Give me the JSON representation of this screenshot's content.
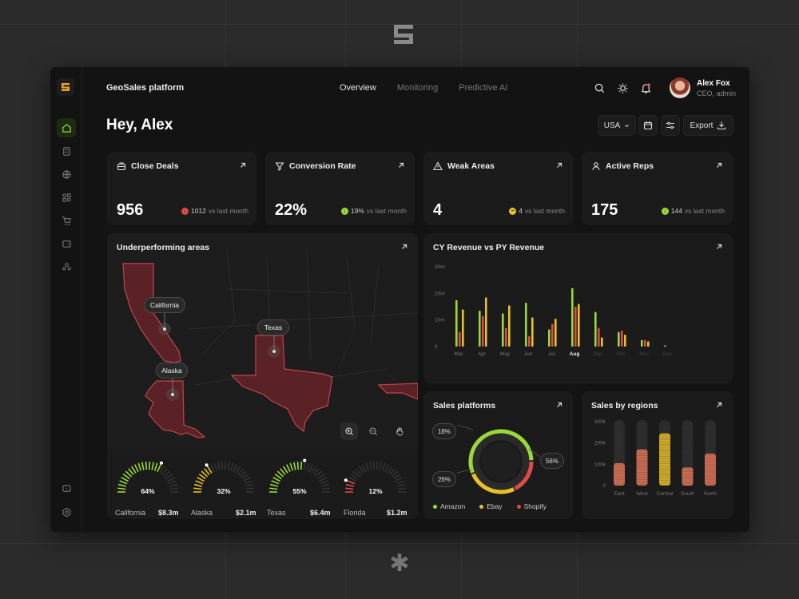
{
  "app": {
    "title": "GeoSales platform"
  },
  "nav": {
    "tabs": [
      {
        "label": "Overview",
        "active": true
      },
      {
        "label": "Monitoring",
        "active": false
      },
      {
        "label": "Predictive AI",
        "active": false
      }
    ]
  },
  "user": {
    "name": "Alex Fox",
    "role": "CEO, admin"
  },
  "greeting": "Hey, Alex",
  "controls": {
    "country": "USA",
    "export_label": "Export"
  },
  "kpis": [
    {
      "title": "Close Deals",
      "icon": "briefcase-icon",
      "value": "956",
      "delta": "1012",
      "delta_suffix": "vs last month",
      "trend": "down",
      "color": "#e04a4a"
    },
    {
      "title": "Conversion Rate",
      "icon": "filter-icon",
      "value": "22%",
      "delta": "19%",
      "delta_suffix": "vs last month",
      "trend": "up",
      "color": "#9ad83a"
    },
    {
      "title": "Weak Areas",
      "icon": "warning-icon",
      "value": "4",
      "delta": "4",
      "delta_suffix": "vs last month",
      "trend": "flat",
      "color": "#e8c12a"
    },
    {
      "title": "Active Reps",
      "icon": "user-icon",
      "value": "175",
      "delta": "144",
      "delta_suffix": "vs last month",
      "trend": "up",
      "color": "#9ad83a"
    }
  ],
  "map": {
    "title": "Underperforming areas",
    "pins": [
      "California",
      "Texas",
      "Alaska"
    ],
    "tools": [
      "zoom-in-icon",
      "zoom-out-icon",
      "hand-icon"
    ]
  },
  "gauges": [
    {
      "state": "California",
      "pct": "64%",
      "value": "$8.3m",
      "fraction": 0.64,
      "color": "#9ad83a"
    },
    {
      "state": "Alaska",
      "pct": "32%",
      "value": "$2.1m",
      "fraction": 0.32,
      "color": "#e8c12a"
    },
    {
      "state": "Texas",
      "pct": "55%",
      "value": "$6.4m",
      "fraction": 0.55,
      "color": "#9ad83a"
    },
    {
      "state": "Florida",
      "pct": "12%",
      "value": "$1.2m",
      "fraction": 0.12,
      "color": "#e04a4a"
    }
  ],
  "revenue": {
    "title": "CY Revenue vs PY Revenue",
    "colors": {
      "cy": "#e8c12a",
      "py": "#e04a4a",
      "base": "#9ad83a"
    }
  },
  "platforms": {
    "title": "Sales platforms",
    "labels": [
      "18%",
      "26%",
      "56%"
    ],
    "legend": [
      {
        "name": "Amazon",
        "color": "#9ad83a"
      },
      {
        "name": "Ebay",
        "color": "#e8c12a"
      },
      {
        "name": "Shopify",
        "color": "#e04a4a"
      }
    ]
  },
  "regions": {
    "title": "Sales by regions"
  },
  "chart_data": [
    {
      "type": "bar",
      "title": "CY Revenue vs PY Revenue",
      "categories": [
        "Mar",
        "Apr",
        "May",
        "Jun",
        "Jul",
        "Aug",
        "Sep",
        "Oct",
        "Nov",
        "Dec"
      ],
      "y_ticks": [
        "30m",
        "20m",
        "10m",
        "0"
      ],
      "ylim": [
        0,
        30
      ],
      "series": [
        {
          "values": [
            17.5,
            13.5,
            12.5,
            16.5,
            6.5,
            22,
            13,
            5.5,
            2.5,
            0.5
          ]
        },
        {
          "values": [
            5.5,
            11.5,
            7,
            4,
            8.5,
            15,
            7,
            6,
            2.5,
            0
          ]
        },
        {
          "values": [
            14,
            18.5,
            15.5,
            11,
            10.5,
            16,
            3.5,
            4.5,
            2,
            0
          ]
        }
      ],
      "highlight_category": "Aug"
    },
    {
      "type": "pie",
      "title": "Sales platforms",
      "categories": [
        "Amazon",
        "Ebay",
        "Shopify"
      ],
      "values": [
        56,
        26,
        18
      ]
    },
    {
      "type": "bar",
      "title": "Sales by regions",
      "categories": [
        "East",
        "West",
        "Central",
        "South",
        "North"
      ],
      "y_ticks": [
        "300k",
        "200k",
        "100k",
        "0"
      ],
      "ylim": [
        0,
        300
      ],
      "values": [
        105,
        170,
        245,
        85,
        150
      ]
    }
  ]
}
